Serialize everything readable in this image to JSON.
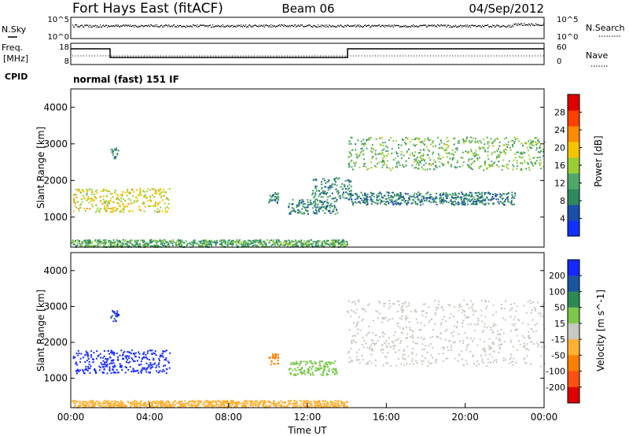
{
  "header": {
    "station": "Fort Hays East (fitACF)",
    "beam": "Beam 06",
    "date": "04/Sep/2012",
    "nsky_label": "N.Sky",
    "nsearch_label": "N.Search",
    "freq_label_1": "Freq.",
    "freq_label_2": "[MHz]",
    "nave_label": "Nave",
    "cpid_label": "CPID",
    "cpid_text": "normal (fast) 151 IF",
    "noise_ticks_left": [
      "10^5",
      "10^0"
    ],
    "noise_ticks_right": [
      "10^5",
      "10^0"
    ],
    "freq_ticks": [
      "18",
      "8"
    ],
    "nave_ticks": [
      "60",
      "0"
    ]
  },
  "colors": {
    "power_scale": [
      "#1030ff",
      "#1a4ea8",
      "#2e8a5e",
      "#4fa86a",
      "#9acd32",
      "#f5c400",
      "#ff8a00",
      "#ff4000",
      "#e00000"
    ],
    "velocity_scale": [
      "#1428ff",
      "#1a55a0",
      "#2e8a55",
      "#7cc84a",
      "#c8c8c0",
      "#ffb030",
      "#ff8000",
      "#ff5010",
      "#e00000"
    ]
  },
  "chart_data": [
    {
      "type": "heatmap",
      "title": "Power",
      "xlabel": "",
      "ylabel": "Slant Range [km]",
      "xlim": [
        0,
        24
      ],
      "ylim": [
        180,
        4500
      ],
      "yticks": [
        "1000",
        "2000",
        "3000",
        "4000"
      ],
      "colorbar_label": "Power [dB]",
      "colorbar_ticks": [
        "4",
        "8",
        "12",
        "16",
        "20",
        "24",
        "28"
      ],
      "colorbar_range": [
        0,
        32
      ],
      "features": [
        {
          "t_start": 0.1,
          "t_end": 5.0,
          "range_km": [
            1150,
            1800
          ],
          "value": 18
        },
        {
          "t_start": 2.0,
          "t_end": 2.4,
          "range_km": [
            2600,
            2900
          ],
          "value": 10
        },
        {
          "t_start": 10.0,
          "t_end": 10.5,
          "range_km": [
            1400,
            1700
          ],
          "value": 10
        },
        {
          "t_start": 11.0,
          "t_end": 13.5,
          "range_km": [
            1100,
            1500
          ],
          "value": 9
        },
        {
          "t_start": 12.2,
          "t_end": 14.2,
          "range_km": [
            1500,
            2100
          ],
          "value": 9
        },
        {
          "t_start": 14.0,
          "t_end": 22.5,
          "range_km": [
            1350,
            1700
          ],
          "value": 8
        },
        {
          "t_start": 14.0,
          "t_end": 24.0,
          "range_km": [
            2300,
            3200
          ],
          "value": 14
        },
        {
          "t_start": 0.0,
          "t_end": 14.0,
          "range_km": [
            200,
            400
          ],
          "value": 12
        }
      ]
    },
    {
      "type": "heatmap",
      "title": "Velocity",
      "xlabel": "Time UT",
      "ylabel": "Slant Range [km]",
      "xlim": [
        0,
        24
      ],
      "ylim": [
        180,
        4500
      ],
      "xticks": [
        "00:00",
        "04:00",
        "08:00",
        "12:00",
        "16:00",
        "20:00",
        "00:00"
      ],
      "yticks": [
        "1000",
        "2000",
        "3000",
        "4000"
      ],
      "colorbar_label": "Velocity [m s^-1]",
      "colorbar_ticks": [
        "200",
        "100",
        "50",
        "15",
        "-15",
        "-50",
        "-100",
        "-200"
      ],
      "features": [
        {
          "t_start": 0.1,
          "t_end": 5.0,
          "range_km": [
            1150,
            1800
          ],
          "value": 250
        },
        {
          "t_start": 2.0,
          "t_end": 2.4,
          "range_km": [
            2600,
            2900
          ],
          "value": 200
        },
        {
          "t_start": 10.0,
          "t_end": 10.5,
          "range_km": [
            1400,
            1700
          ],
          "value": -60
        },
        {
          "t_start": 11.0,
          "t_end": 13.5,
          "range_km": [
            1100,
            1500
          ],
          "value": 30
        },
        {
          "t_start": 14.0,
          "t_end": 24.0,
          "range_km": [
            1350,
            3200
          ],
          "value": 0
        },
        {
          "t_start": 0.0,
          "t_end": 14.0,
          "range_km": [
            200,
            400
          ],
          "value": -30
        }
      ]
    }
  ]
}
